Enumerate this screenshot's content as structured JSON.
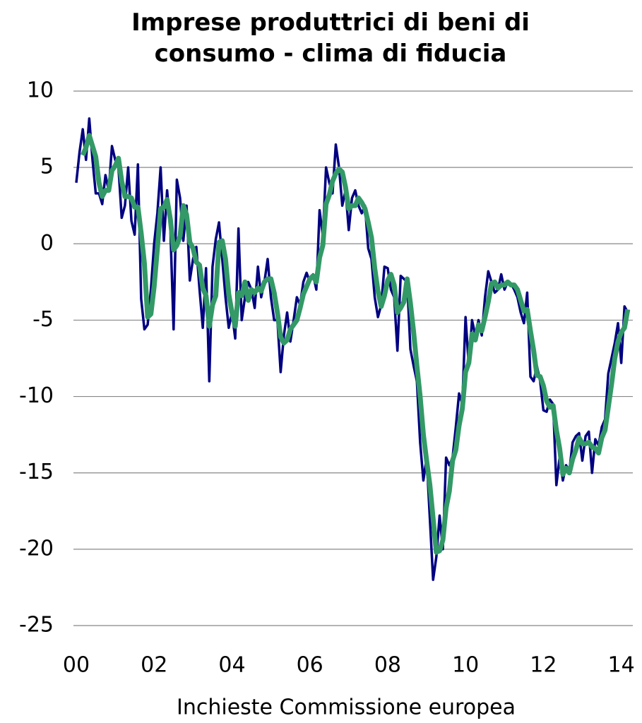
{
  "chart_data": {
    "type": "line",
    "title": "Imprese produttrici di beni di consumo - clima di fiducia",
    "xlabel": "Inchieste Commissione europea",
    "x": [
      0,
      1,
      2,
      3,
      4,
      5,
      6,
      7,
      8,
      9,
      10,
      11,
      12,
      13,
      14,
      15,
      16,
      17,
      18,
      19,
      20,
      21,
      22,
      23,
      24,
      25,
      26,
      27,
      28,
      29,
      30,
      31,
      32,
      33,
      34,
      35,
      36,
      37,
      38,
      39,
      40,
      41,
      42,
      43,
      44,
      45,
      46,
      47,
      48,
      49,
      50,
      51,
      52,
      53,
      54,
      55,
      56,
      57,
      58,
      59,
      60,
      61,
      62,
      63,
      64,
      65,
      66,
      67,
      68,
      69,
      70,
      71,
      72,
      73,
      74,
      75,
      76,
      77,
      78,
      79,
      80,
      81,
      82,
      83,
      84,
      85,
      86,
      87,
      88,
      89,
      90,
      91,
      92,
      93,
      94,
      95,
      96,
      97,
      98,
      99,
      100,
      101,
      102,
      103,
      104,
      105,
      106,
      107,
      108,
      109,
      110,
      111,
      112,
      113,
      114,
      115,
      116,
      117,
      118,
      119,
      120,
      121,
      122,
      123,
      124,
      125,
      126,
      127,
      128,
      129,
      130,
      131,
      132,
      133,
      134,
      135,
      136,
      137,
      138,
      139,
      140,
      141,
      142,
      143,
      144,
      145,
      146,
      147,
      148,
      149,
      150,
      151,
      152,
      153,
      154,
      155,
      156,
      157,
      158,
      159,
      160,
      161,
      162,
      163,
      164,
      165,
      166,
      167,
      168,
      169,
      170
    ],
    "series": [
      {
        "color": "#000080",
        "width": 3.5,
        "values": [
          4,
          6,
          7.5,
          5.5,
          8.2,
          5.5,
          3.3,
          3.3,
          2.6,
          4.5,
          3.5,
          6.4,
          5.5,
          5.0,
          1.7,
          2.5,
          5.0,
          1.5,
          0.6,
          5.2,
          -3.6,
          -5.6,
          -5.3,
          -3.0,
          0,
          2,
          5,
          0.2,
          3.5,
          1,
          -5.6,
          4.2,
          3,
          0.2,
          2.5,
          -2.4,
          -1,
          -0.2,
          -3,
          -5.5,
          -1.6,
          -9,
          -1.5,
          0.3,
          1.4,
          -1,
          -3.5,
          -5.5,
          -4.5,
          -6.2,
          1,
          -5,
          -3.5,
          -2.5,
          -3,
          -4.2,
          -1.5,
          -3.5,
          -2.5,
          -1,
          -3.5,
          -5,
          -5,
          -8.4,
          -6,
          -4.5,
          -6.4,
          -5,
          -3.5,
          -4,
          -2.5,
          -1.9,
          -2.5,
          -2,
          -3,
          2.2,
          0.5,
          5,
          4,
          3.3,
          6.5,
          5,
          2.5,
          3.5,
          0.9,
          3,
          3.5,
          2.5,
          2,
          2.5,
          -0.3,
          -1,
          -3.5,
          -4.8,
          -4,
          -1.5,
          -1.6,
          -3,
          -3.5,
          -7,
          -2.1,
          -2.3,
          -2.5,
          -6.9,
          -8,
          -9,
          -13,
          -15.5,
          -14,
          -18,
          -22,
          -20.5,
          -17.8,
          -20,
          -14,
          -14.5,
          -14,
          -12,
          -9.8,
          -10.5,
          -4.8,
          -8,
          -5,
          -6,
          -5,
          -6,
          -3.5,
          -1.8,
          -2.5,
          -3.2,
          -3,
          -2,
          -3,
          -2.5,
          -2.6,
          -3,
          -3.5,
          -4.5,
          -5.2,
          -3.2,
          -8.7,
          -9,
          -8,
          -9,
          -10.9,
          -11,
          -10.2,
          -10.5,
          -15.8,
          -14,
          -15.5,
          -14.5,
          -14.9,
          -13,
          -12.6,
          -12.4,
          -14.2,
          -12.6,
          -12.3,
          -15,
          -12.8,
          -13.2,
          -12,
          -11.5,
          -8.5,
          -7.5,
          -6.5,
          -5.2,
          -7.8,
          -4.1,
          -4.5
        ]
      },
      {
        "color": "#339966",
        "width": 7,
        "values": [
          null,
          null,
          5.8,
          6.3,
          7.1,
          6.4,
          5.7,
          4.0,
          3.1,
          3.5,
          3.5,
          4.8,
          5.1,
          5.6,
          4.1,
          3.1,
          3.1,
          3.0,
          2.4,
          2.4,
          0.7,
          -1.3,
          -4.8,
          -4.6,
          -2.8,
          -0.3,
          2.3,
          2.4,
          2.9,
          1.6,
          -0.4,
          -0.1,
          0.5,
          2.5,
          1.9,
          0.1,
          -0.3,
          -1.2,
          -1.4,
          -2.9,
          -3.4,
          -5.4,
          -4.0,
          -3.4,
          0.1,
          0.2,
          -1.0,
          -3.3,
          -4.5,
          -5.4,
          -3.2,
          -3.4,
          -2.5,
          -3.7,
          -3.0,
          -3.2,
          -2.9,
          -3.1,
          -2.5,
          -2.3,
          -2.3,
          -3.2,
          -4.5,
          -6.1,
          -6.5,
          -6.3,
          -5.6,
          -5.3,
          -5.0,
          -4.2,
          -3.3,
          -2.8,
          -2.3,
          -2.1,
          -2.5,
          -0.9,
          -0.1,
          2.6,
          3.2,
          4.1,
          4.6,
          4.9,
          4.7,
          3.7,
          2.3,
          2.5,
          2.5,
          3.0,
          2.7,
          2.3,
          1.4,
          0.4,
          -1.6,
          -3.1,
          -4.1,
          -3.4,
          -2.4,
          -2.0,
          -2.7,
          -4.5,
          -4.2,
          -3.8,
          -2.3,
          -3.9,
          -5.8,
          -8.0,
          -10.0,
          -12.5,
          -14.2,
          -15.8,
          -18.0,
          -20.2,
          -20.1,
          -19.4,
          -17.3,
          -16.2,
          -14.2,
          -13.5,
          -11.9,
          -10.8,
          -8.4,
          -7.8,
          -5.9,
          -6.3,
          -5.3,
          -5.7,
          -4.8,
          -3.8,
          -2.6,
          -2.5,
          -2.9,
          -2.7,
          -2.7,
          -2.5,
          -2.7,
          -2.7,
          -3.0,
          -3.7,
          -4.4,
          -4.3,
          -5.7,
          -7.0,
          -8.6,
          -8.7,
          -9.3,
          -10.3,
          -10.7,
          -10.6,
          -12.2,
          -13.4,
          -15.1,
          -14.7,
          -15.0,
          -14.1,
          -13.5,
          -12.7,
          -13.1,
          -13.1,
          -13.0,
          -13.3,
          -13.4,
          -13.7,
          -12.7,
          -12.2,
          -10.7,
          -9.2,
          -7.5,
          -6.4,
          -5.8,
          -5.5,
          -4.3
        ]
      }
    ],
    "xlim": [
      0,
      172
    ],
    "xticks": [
      {
        "value": 0,
        "label": "00"
      },
      {
        "value": 24,
        "label": "02"
      },
      {
        "value": 48,
        "label": "04"
      },
      {
        "value": 72,
        "label": "06"
      },
      {
        "value": 96,
        "label": "08"
      },
      {
        "value": 120,
        "label": "10"
      },
      {
        "value": 144,
        "label": "12"
      },
      {
        "value": 168,
        "label": "14"
      }
    ],
    "ylim": [
      -25,
      10
    ],
    "yticks": [
      -25,
      -20,
      -15,
      -10,
      -5,
      0,
      5,
      10
    ],
    "grid": true
  }
}
